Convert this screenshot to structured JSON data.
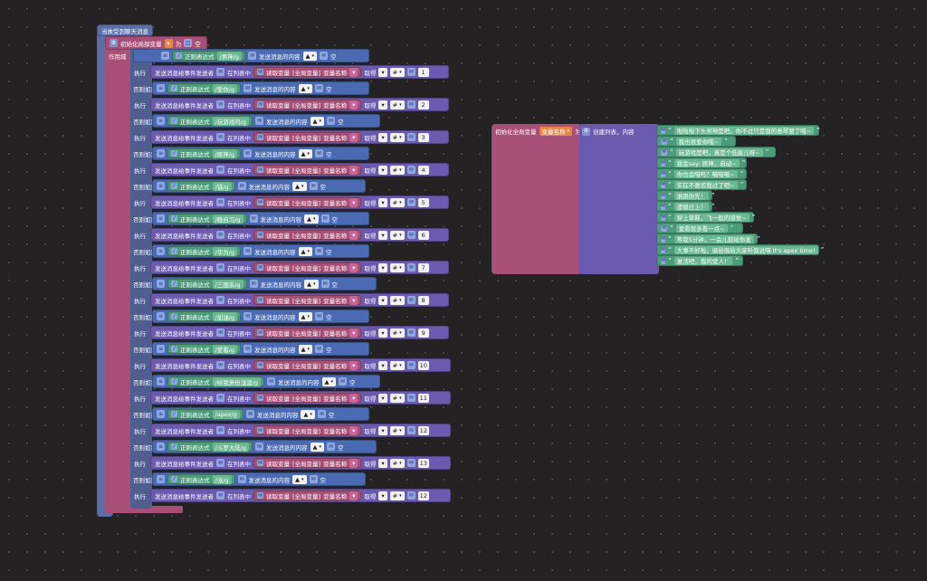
{
  "event": {
    "title": "当故受到聊天消息",
    "init_label": "初始化局部变量",
    "init_suffix": "为",
    "empty": "空",
    "scope_label": "作用域"
  },
  "labels": {
    "if": "如果",
    "elseif": "否则如果",
    "do": "执行",
    "regex": "正则表达式",
    "msg_content": "发送消息的内容",
    "send_to_sender": "发送消息给事件发送者",
    "in_list": "在列表中",
    "get_var": "读取变量",
    "global_var": "全局变量",
    "var_name": "变量名称",
    "take": "取得",
    "hash": "#",
    "empty": "空"
  },
  "rules": [
    {
      "regex": "/男神/g",
      "index": "1"
    },
    {
      "regex": "/爱你/g",
      "index": "2"
    },
    {
      "regex": "/玩游戏吗/g",
      "index": "3"
    },
    {
      "regex": "/原神/g",
      "index": "4"
    },
    {
      "regex": "/锚/g",
      "index": "5"
    },
    {
      "regex": "/晚自习/g",
      "index": "6"
    },
    {
      "regex": "/华为/g",
      "index": "7"
    },
    {
      "regex": "/三国杀/g",
      "index": "8"
    },
    {
      "regex": "/加油/g",
      "index": "9"
    },
    {
      "regex": "/爱看/g",
      "index": "10"
    },
    {
      "regex": "/给我来份湿湿/g",
      "index": "11"
    },
    {
      "regex": "/apex/g",
      "index": "12"
    },
    {
      "regex": "/斗罗大陆/g",
      "index": "13"
    },
    {
      "regex": "/派/g",
      "index": "12"
    }
  ],
  "global": {
    "label": "初始化全局变量",
    "var_name": "变量名称",
    "suffix": "为",
    "create_list": "创建列表，内容",
    "items": [
      "啦啦啦下头男神是吧，你不过只是我的意琴罢了喵~",
      "我也很爱你哦~",
      "玩游戏是吧，真是个低能儿呀~",
      "我会say: 原神，启动~",
      "你也会喵吗？喵喵喵~",
      "实在不喜欢我过了吧~",
      "谁跟你先！",
      "遗憾日上！",
      "穿上草鞋，飞一般的感觉~",
      "爱看就多看一点~",
      "等我5分钟，一会儿就给你发",
      "大事不好啦，俱俗俱俗大家听我说喵 It's apex time!",
      "复活吧，我的爱人！"
    ]
  },
  "colors": {
    "background": "#252223",
    "event_block": "#5a6fa6",
    "pink_block": "#a84f78",
    "green_block": "#4b9c7a",
    "purple_block": "#6b5bb0"
  }
}
